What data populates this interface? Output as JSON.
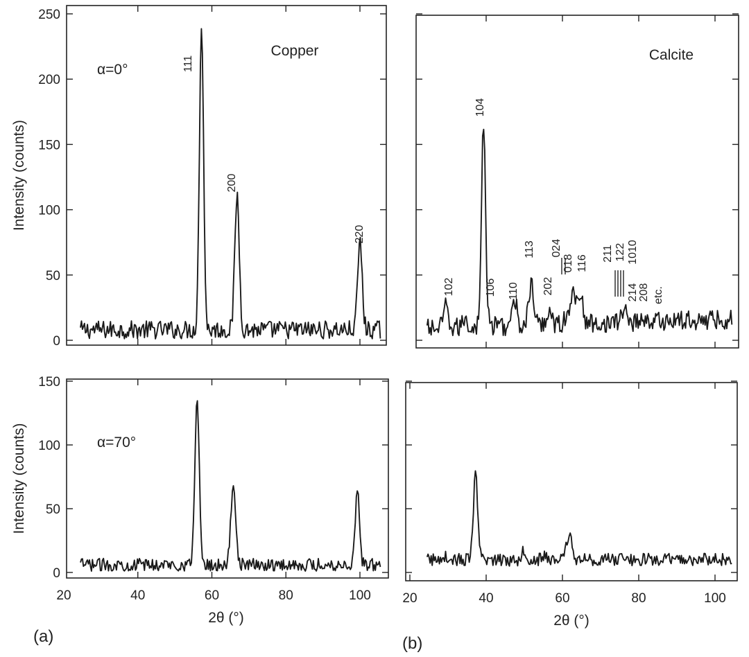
{
  "panel_letters": {
    "a": "(a)",
    "b": "(b)"
  },
  "chart_data": [
    {
      "type": "line",
      "panel": "copper-top",
      "title": "Copper",
      "annotation": "α=0°",
      "xlabel": "",
      "ylabel": "Intensity (counts)",
      "xlim": [
        20,
        108
      ],
      "ylim": [
        0,
        250
      ],
      "yticks": [
        0,
        50,
        100,
        150,
        200,
        250
      ],
      "xticks": [],
      "baseline": 8,
      "peaks": [
        {
          "x": 57.2,
          "height": 245,
          "width": 0.55,
          "label": "111"
        },
        {
          "x": 66.8,
          "height": 111,
          "width": 0.6,
          "label": "200"
        },
        {
          "x": 100.0,
          "height": 76,
          "width": 0.6,
          "label": "220"
        }
      ],
      "x_range": [
        24.5,
        105.5
      ],
      "grid": false
    },
    {
      "type": "line",
      "panel": "calcite-top",
      "title": "Calcite",
      "annotation": "",
      "xlabel": "",
      "ylabel": "",
      "xlim": [
        20,
        108
      ],
      "ylim": [
        0,
        250
      ],
      "yticks": [
        0,
        50,
        100,
        150,
        200,
        250
      ],
      "xticks": [],
      "baseline": 9,
      "peaks": [
        {
          "x": 29.4,
          "height": 25,
          "width": 0.55,
          "label": "102"
        },
        {
          "x": 34.5,
          "height": 17,
          "width": 0.5,
          "label": ""
        },
        {
          "x": 39.3,
          "height": 162,
          "width": 0.55,
          "label": "104"
        },
        {
          "x": 43.2,
          "height": 12,
          "width": 0.55,
          "label": "106"
        },
        {
          "x": 47.5,
          "height": 27,
          "width": 0.6,
          "label": "110"
        },
        {
          "x": 51.8,
          "height": 40,
          "width": 0.65,
          "label": "113"
        },
        {
          "x": 56.6,
          "height": 22,
          "width": 0.6,
          "label": "202"
        },
        {
          "x": 60.7,
          "height": 14,
          "width": 0.5,
          "label": "024"
        },
        {
          "x": 62.8,
          "height": 35,
          "width": 0.6,
          "label": "018"
        },
        {
          "x": 64.6,
          "height": 33,
          "width": 0.65,
          "label": "116"
        },
        {
          "x": 76.3,
          "height": 20,
          "width": 0.7,
          "label": "122"
        },
        {
          "x": 81.0,
          "height": 13,
          "width": 0.6,
          "label": "1010"
        }
      ],
      "peak_labels_extra": [
        "211",
        "214",
        "208",
        "etc."
      ],
      "x_range": [
        24.5,
        104.5
      ],
      "grid": false
    },
    {
      "type": "line",
      "panel": "copper-bottom",
      "title": "",
      "annotation": "α=70°",
      "xlabel": "2θ (°)",
      "ylabel": "Intensity (counts)",
      "xlim": [
        20,
        108
      ],
      "ylim": [
        0,
        150
      ],
      "yticks": [
        0,
        50,
        100,
        150
      ],
      "xticks": [
        20,
        40,
        60,
        80,
        100
      ],
      "baseline": 6,
      "peaks": [
        {
          "x": 56.0,
          "height": 134,
          "width": 0.6
        },
        {
          "x": 65.8,
          "height": 70,
          "width": 0.65
        },
        {
          "x": 99.3,
          "height": 67,
          "width": 0.55
        }
      ],
      "x_range": [
        24.5,
        105.5
      ],
      "grid": false
    },
    {
      "type": "line",
      "panel": "calcite-bottom",
      "title": "",
      "annotation": "",
      "xlabel": "2θ (°)",
      "ylabel": "",
      "xlim": [
        20,
        108
      ],
      "ylim": [
        0,
        150
      ],
      "yticks": [
        0,
        50,
        100,
        150
      ],
      "xticks": [
        20,
        40,
        60,
        80,
        100
      ],
      "baseline": 10,
      "peaks": [
        {
          "x": 28.8,
          "height": 14,
          "width": 0.5
        },
        {
          "x": 37.2,
          "height": 77,
          "width": 0.55
        },
        {
          "x": 49.9,
          "height": 18,
          "width": 0.55
        },
        {
          "x": 55.0,
          "height": 13,
          "width": 0.55
        },
        {
          "x": 61.8,
          "height": 30,
          "width": 0.7
        },
        {
          "x": 76.2,
          "height": 12,
          "width": 0.6
        }
      ],
      "x_range": [
        24.5,
        104.5
      ],
      "grid": false
    }
  ]
}
